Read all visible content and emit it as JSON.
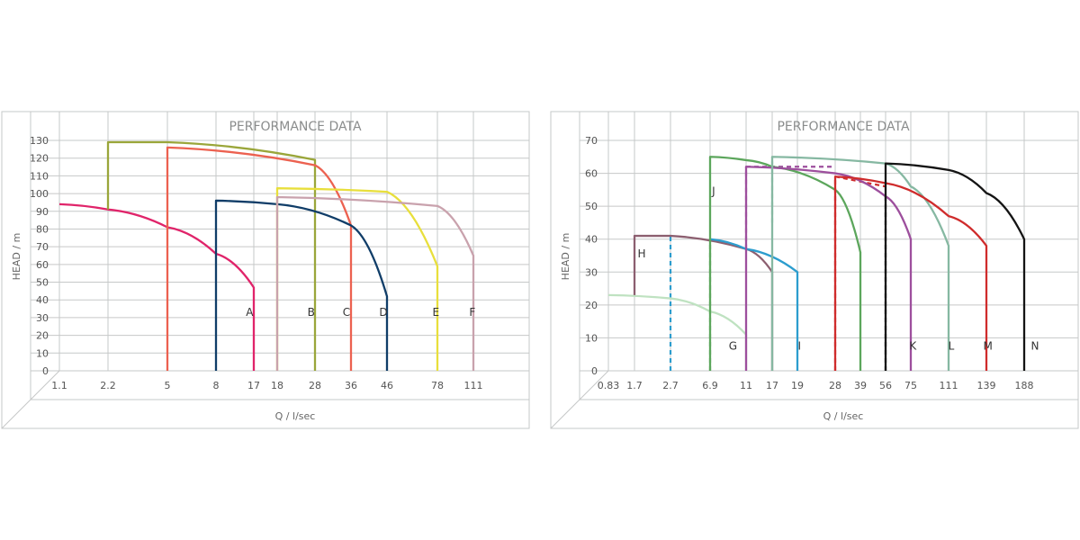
{
  "chart_data": [
    {
      "type": "line",
      "title": "PERFORMANCE DATA",
      "xlabel": "Q / l/sec",
      "ylabel": "HEAD / m",
      "x_ticks": [
        "1.1",
        "2.2",
        "5",
        "8",
        "17",
        "18",
        "28",
        "36",
        "46",
        "78",
        "111"
      ],
      "y_ticks": [
        "0",
        "10",
        "20",
        "30",
        "40",
        "50",
        "60",
        "70",
        "80",
        "90",
        "100",
        "110",
        "120",
        "130"
      ],
      "ylim": [
        0,
        130
      ],
      "x_scale": "categorical (non-uniform)",
      "grid": true,
      "series": [
        {
          "name": "A",
          "color": "#e0246a",
          "x": [
            "1.1",
            "2.2",
            "5",
            "8",
            "17",
            "17"
          ],
          "y": [
            94,
            91,
            81,
            66,
            47,
            0
          ],
          "label_x": 16,
          "label_y": 33
        },
        {
          "name": "B",
          "color": "#9aa63a",
          "x": [
            "2.2",
            "2.2",
            "5",
            "28",
            "28"
          ],
          "y": [
            91,
            129,
            129,
            119,
            0
          ],
          "label_x": 27,
          "label_y": 33
        },
        {
          "name": "C",
          "color": "#ec6150",
          "x": [
            "5",
            "5",
            "28",
            "36",
            "36"
          ],
          "y": [
            0,
            126,
            116,
            82,
            0
          ],
          "label_x": 35,
          "label_y": 33
        },
        {
          "name": "D",
          "color": "#103d68",
          "x": [
            "8",
            "8",
            "18",
            "36",
            "46",
            "46"
          ],
          "y": [
            0,
            96,
            94,
            82,
            42,
            0
          ],
          "label_x": 45,
          "label_y": 33
        },
        {
          "name": "E",
          "color": "#e8df3c",
          "x": [
            "18",
            "18",
            "46",
            "78",
            "78"
          ],
          "y": [
            0,
            103,
            101,
            59,
            0
          ],
          "label_x": 77,
          "label_y": 33
        },
        {
          "name": "F",
          "color": "#c9a2ad",
          "x": [
            "18",
            "18",
            "78",
            "111",
            "111"
          ],
          "y": [
            0,
            98,
            93,
            65,
            0
          ],
          "label_x": 110,
          "label_y": 33
        }
      ]
    },
    {
      "type": "line",
      "title": "PERFORMANCE DATA",
      "xlabel": "Q / l/sec",
      "ylabel": "HEAD / m",
      "x_ticks": [
        "0.83",
        "1.7",
        "2.7",
        "6.9",
        "11",
        "17",
        "19",
        "28",
        "39",
        "56",
        "75",
        "111",
        "139",
        "188"
      ],
      "y_ticks": [
        "0",
        "10",
        "20",
        "30",
        "40",
        "50",
        "60",
        "70"
      ],
      "ylim": [
        0,
        70
      ],
      "x_scale": "categorical (non-uniform)",
      "grid": true,
      "series": [
        {
          "name": "G",
          "color": "#bfe2c1",
          "x": [
            "0.83",
            "2.7",
            "6.9",
            "11",
            "11"
          ],
          "y": [
            23,
            22,
            18,
            11,
            0
          ],
          "label_x": 9.5,
          "label_y": 7.5
        },
        {
          "name": "H",
          "color": "#8c5f70",
          "x": [
            "1.7",
            "1.7",
            "2.7",
            "11",
            "17",
            "17"
          ],
          "y": [
            23,
            41,
            41,
            37,
            30,
            0
          ],
          "label_x": 1.9,
          "label_y": 35.5
        },
        {
          "name": "I",
          "color": "#2c9dce",
          "x": [
            "6.9",
            "11",
            "19",
            "19"
          ],
          "y": [
            40,
            37,
            30,
            0
          ],
          "label_x": 19.5,
          "label_y": 7.5
        },
        {
          "name": "J",
          "color": "#5ca65c",
          "x": [
            "6.9",
            "6.9",
            "11",
            "17",
            "28",
            "39",
            "39"
          ],
          "y": [
            0,
            65,
            64,
            62,
            55,
            36,
            0
          ],
          "label_x": 7.3,
          "label_y": 54.5
        },
        {
          "name": "K",
          "color": "#9d4f9d",
          "x": [
            "11",
            "11",
            "28",
            "56",
            "75",
            "75"
          ],
          "y": [
            0,
            62,
            60,
            53,
            40,
            0
          ],
          "label_x": 77,
          "label_y": 7.5
        },
        {
          "name": "L",
          "color": "#86b8a2",
          "x": [
            "17",
            "17",
            "56",
            "75",
            "111",
            "111"
          ],
          "y": [
            0,
            65,
            63,
            56,
            38,
            0
          ],
          "label_x": 113,
          "label_y": 7.5
        },
        {
          "name": "M",
          "color": "#cf2c2c",
          "x": [
            "28",
            "28",
            "56",
            "111",
            "139",
            "139"
          ],
          "y": [
            0,
            59,
            57,
            47,
            38,
            0
          ],
          "label_x": 141,
          "label_y": 7.5
        },
        {
          "name": "N",
          "color": "#141414",
          "x": [
            "56",
            "56",
            "111",
            "139",
            "188",
            "188"
          ],
          "y": [
            0,
            63,
            61,
            54,
            40,
            0
          ],
          "label_x": 190,
          "label_y": 7.5
        }
      ]
    }
  ]
}
